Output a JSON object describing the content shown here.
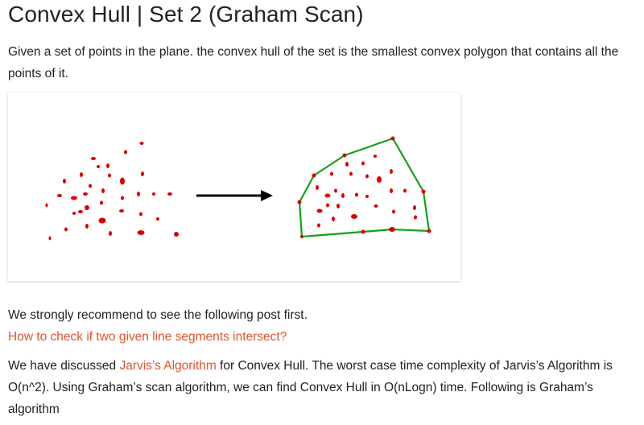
{
  "article": {
    "title": "Convex Hull | Set 2 (Graham Scan)",
    "intro": "Given a set of points in the plane. the convex hull of the set is the smallest convex polygon that contains all the points of it.",
    "recommend": "We strongly recommend to see the following post first.",
    "recommend_link": "How to check if two given line segments intersect?",
    "discussion_prefix": "We have discussed ",
    "jarvis_link": "Jarvis’s Algorithm",
    "discussion_suffix": " for Convex Hull. The worst case time complexity of Jarvis’s Algorithm is O(n^2). Using Graham’s scan algorithm, we can find Convex Hull in O(nLogn) time. Following is Graham’s algorithm"
  },
  "colors": {
    "text": "#222222",
    "link": "#e0532c",
    "point": "#dd0000",
    "hull": "#14a014",
    "arrow": "#000000"
  }
}
